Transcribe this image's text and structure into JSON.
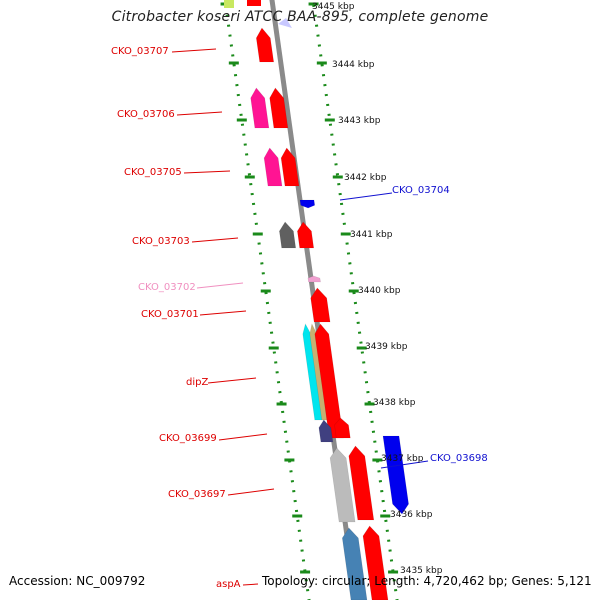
{
  "title": "Citrobacter koseri ATCC BAA-895, complete genome",
  "accession_text": "Accession: NC_009792",
  "topology_text": "Topology: circular; Length: 4,720,462 bp; Genes: 5,121",
  "colors": {
    "forward_label": "#dd0000",
    "reverse_label": "#1010d0",
    "pink_label": "#f090c0",
    "backbone": "#8a8a8a",
    "tick": "#1a8a1a"
  },
  "scale_ticks": [
    "3445 kbp",
    "3444 kbp",
    "3443 kbp",
    "3442 kbp",
    "3441 kbp",
    "3440 kbp",
    "3439 kbp",
    "3438 kbp",
    "3437 kbp",
    "3436 kbp",
    "3435 kbp"
  ],
  "gene_labels": [
    {
      "text": "CKO_03707",
      "color": "#dd0000"
    },
    {
      "text": "CKO_03706",
      "color": "#dd0000"
    },
    {
      "text": "CKO_03705",
      "color": "#dd0000"
    },
    {
      "text": "CKO_03704",
      "color": "#1010d0"
    },
    {
      "text": "CKO_03703",
      "color": "#dd0000"
    },
    {
      "text": "CKO_03702",
      "color": "#f090c0"
    },
    {
      "text": "CKO_03701",
      "color": "#dd0000"
    },
    {
      "text": "dipZ",
      "color": "#dd0000"
    },
    {
      "text": "CKO_03699",
      "color": "#dd0000"
    },
    {
      "text": "CKO_03698",
      "color": "#1010d0"
    },
    {
      "text": "CKO_03697",
      "color": "#dd0000"
    },
    {
      "text": "aspA",
      "color": "#dd0000"
    }
  ],
  "features": [
    {
      "color": "#ff0000",
      "strand": "forward"
    },
    {
      "color": "#ff1493",
      "strand": "forward"
    },
    {
      "color": "#ff0000",
      "strand": "forward"
    },
    {
      "color": "#ff1493",
      "strand": "forward"
    },
    {
      "color": "#ff0000",
      "strand": "forward"
    },
    {
      "color": "#0000ee",
      "strand": "reverse"
    },
    {
      "color": "#606060",
      "strand": "forward"
    },
    {
      "color": "#ff0000",
      "strand": "forward"
    },
    {
      "color": "#f0a0d0",
      "strand": "forward"
    },
    {
      "color": "#ff0000",
      "strand": "forward"
    },
    {
      "color": "#00e5ee",
      "strand": "forward"
    },
    {
      "color": "#c8b070",
      "strand": "forward"
    },
    {
      "color": "#ff0000",
      "strand": "forward"
    },
    {
      "color": "#404080",
      "strand": "forward"
    },
    {
      "color": "#ff0000",
      "strand": "forward"
    },
    {
      "color": "#0000ee",
      "strand": "reverse"
    },
    {
      "color": "#bbbbbb",
      "strand": "forward"
    },
    {
      "color": "#ff0000",
      "strand": "forward"
    },
    {
      "color": "#4682b4",
      "strand": "forward"
    },
    {
      "color": "#ff0000",
      "strand": "forward"
    }
  ]
}
